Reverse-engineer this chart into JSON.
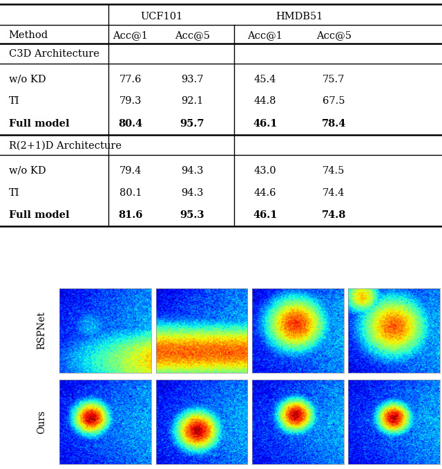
{
  "table": {
    "sections": [
      {
        "section_header": "C3D Architecture",
        "rows": [
          {
            "method": "w/o KD",
            "bold": false,
            "values": [
              "77.6",
              "93.7",
              "45.4",
              "75.7"
            ]
          },
          {
            "method": "TI",
            "bold": false,
            "values": [
              "79.3",
              "92.1",
              "44.8",
              "67.5"
            ]
          },
          {
            "method": "Full model",
            "bold": true,
            "values": [
              "80.4",
              "95.7",
              "46.1",
              "78.4"
            ]
          }
        ]
      },
      {
        "section_header": "R(2+1)D Architecture",
        "rows": [
          {
            "method": "w/o KD",
            "bold": false,
            "values": [
              "79.4",
              "94.3",
              "43.0",
              "74.5"
            ]
          },
          {
            "method": "TI",
            "bold": false,
            "values": [
              "80.1",
              "94.3",
              "44.6",
              "74.4"
            ]
          },
          {
            "method": "Full model",
            "bold": true,
            "values": [
              "81.6",
              "95.3",
              "46.1",
              "74.8"
            ]
          }
        ]
      }
    ]
  },
  "row_labels": [
    "RSPNet",
    "Ours"
  ],
  "bg_color": "#ffffff",
  "text_color": "#000000"
}
